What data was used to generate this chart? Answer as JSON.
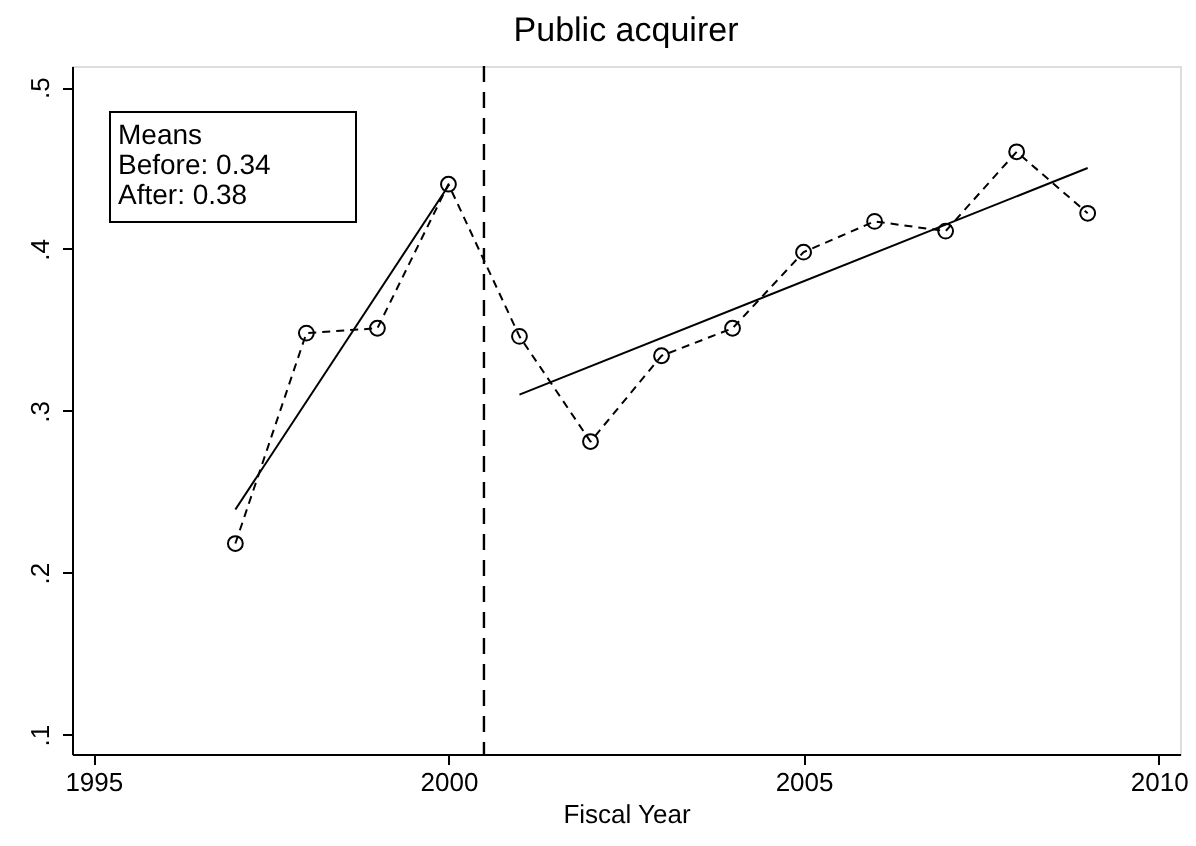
{
  "chart_data": {
    "type": "line",
    "title": "Public acquirer",
    "xlabel": "Fiscal Year",
    "x": [
      1997,
      1998,
      1999,
      2000,
      2001,
      2002,
      2003,
      2004,
      2005,
      2006,
      2007,
      2008,
      2009
    ],
    "series": [
      {
        "color": "#000000",
        "marker": "circle",
        "line_style": "dashed",
        "values": [
          0.218,
          0.348,
          0.351,
          0.44,
          0.346,
          0.281,
          0.334,
          0.351,
          0.398,
          0.417,
          0.411,
          0.46,
          0.422
        ]
      },
      {
        "color": "#000000",
        "marker": "none",
        "line_style": "solid",
        "x": [
          1997,
          2000
        ],
        "values": [
          0.239,
          0.439
        ]
      },
      {
        "color": "#000000",
        "marker": "none",
        "line_style": "solid",
        "x": [
          2001,
          2009
        ],
        "values": [
          0.31,
          0.45
        ]
      }
    ],
    "xlim": [
      1994.7,
      2010.3
    ],
    "ylim": [
      0.088,
      0.513
    ],
    "xticks": [
      1995,
      2000,
      2005,
      2010
    ],
    "yticks": [
      {
        "value": 0.1,
        "label": ".1"
      },
      {
        "value": 0.2,
        "label": ".2"
      },
      {
        "value": 0.3,
        "label": ".3"
      },
      {
        "value": 0.4,
        "label": ".4"
      },
      {
        "value": 0.5,
        "label": ".5"
      }
    ],
    "ref_lines": [
      {
        "axis": "x",
        "value": 2000.5,
        "color": "#000000",
        "line_style": "dashed"
      }
    ],
    "annotations": [
      "Means",
      "Before: 0.34",
      "After:    0.38"
    ],
    "grid": false
  }
}
